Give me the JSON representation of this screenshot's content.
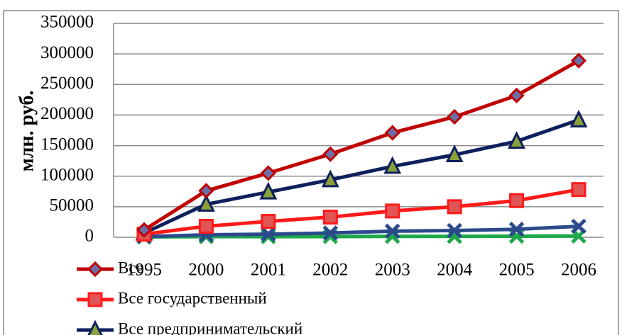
{
  "chart_data": {
    "type": "line",
    "y_label": "млн. руб.",
    "categories": [
      "1995",
      "2000",
      "2001",
      "2002",
      "2003",
      "2004",
      "2005",
      "2006"
    ],
    "series": [
      {
        "name": "Все",
        "color": "#c00000",
        "marker": "diamond",
        "values": [
          12000,
          76000,
          105000,
          136000,
          171000,
          197000,
          232000,
          289000
        ]
      },
      {
        "name": "Все государственный",
        "color": "#ff1a1a",
        "marker": "square",
        "values": [
          5000,
          18000,
          26000,
          33000,
          43000,
          50000,
          60000,
          78000
        ]
      },
      {
        "name": "Все предпринимательский",
        "color": "#0d1f5c",
        "marker": "triangle",
        "values": [
          7000,
          54000,
          74000,
          94000,
          116000,
          135000,
          157000,
          192000
        ]
      },
      {
        "color": "#2a4a8c",
        "marker": "x",
        "values": [
          1000,
          4000,
          5000,
          7000,
          10000,
          11000,
          13000,
          18000
        ]
      },
      {
        "color": "#1ea84a",
        "marker": "x",
        "values": [
          500,
          1000,
          1000,
          1200,
          1500,
          1500,
          1800,
          2000
        ]
      }
    ],
    "ylim": [
      0,
      350000
    ],
    "yticks": [
      0,
      50000,
      100000,
      150000,
      200000,
      250000,
      300000,
      350000
    ],
    "grid": true
  }
}
